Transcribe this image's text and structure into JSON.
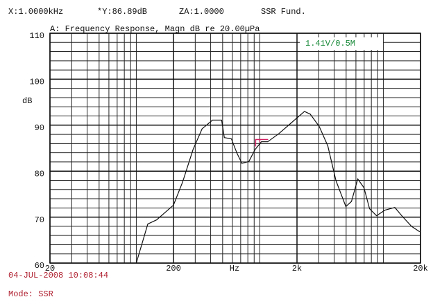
{
  "chart_data": {
    "type": "line",
    "header": [
      "X:1.0000kHz",
      "*Y:86.89dB",
      "ZA:1.0000",
      "SSR Fund."
    ],
    "title": "A: Frequency Response, Magn dB re 20.00µPa",
    "annotation": "1.41V/0.5M",
    "annotation_color": "#1a8a3a",
    "y_label": "dB",
    "x_label": "Hz",
    "date": "04-JUL-2008 10:08:44",
    "mode": "Mode: SSR",
    "footer_color": "#b02030",
    "x_scale": "log",
    "xlim": [
      20,
      20000
    ],
    "xticks": [
      20,
      200,
      {
        "value": 2000,
        "label": "2k"
      },
      {
        "value": 20000,
        "label": "20k"
      }
    ],
    "ylim": [
      60,
      110
    ],
    "yticks": [
      60,
      70,
      80,
      90,
      100,
      110
    ],
    "grid": true,
    "y_minor_step": 2,
    "cursor": {
      "x": 1000,
      "y": 86.89,
      "color": "#d02060"
    },
    "x": [
      100,
      124,
      146,
      200,
      237,
      288,
      341,
      414,
      491,
      516,
      589,
      653,
      716,
      815,
      916,
      1030,
      1160,
      1430,
      1850,
      2300,
      2560,
      3030,
      3550,
      4140,
      4970,
      5520,
      6210,
      6970,
      7740,
      8810,
      10300,
      12400,
      14100,
      16900,
      19700
    ],
    "series": [
      {
        "color": "#111111",
        "values": [
          60,
          68.5,
          69.4,
          72.6,
          77.6,
          84.7,
          89.2,
          91.1,
          91.1,
          87.3,
          87,
          83.9,
          81.7,
          82.1,
          84.7,
          86.4,
          86.4,
          88.2,
          90.8,
          93,
          92.4,
          89.7,
          85.5,
          77.9,
          72.3,
          73.4,
          78.3,
          76.4,
          71.8,
          70.3,
          71.5,
          72.1,
          70.3,
          68,
          66.8
        ]
      }
    ]
  }
}
